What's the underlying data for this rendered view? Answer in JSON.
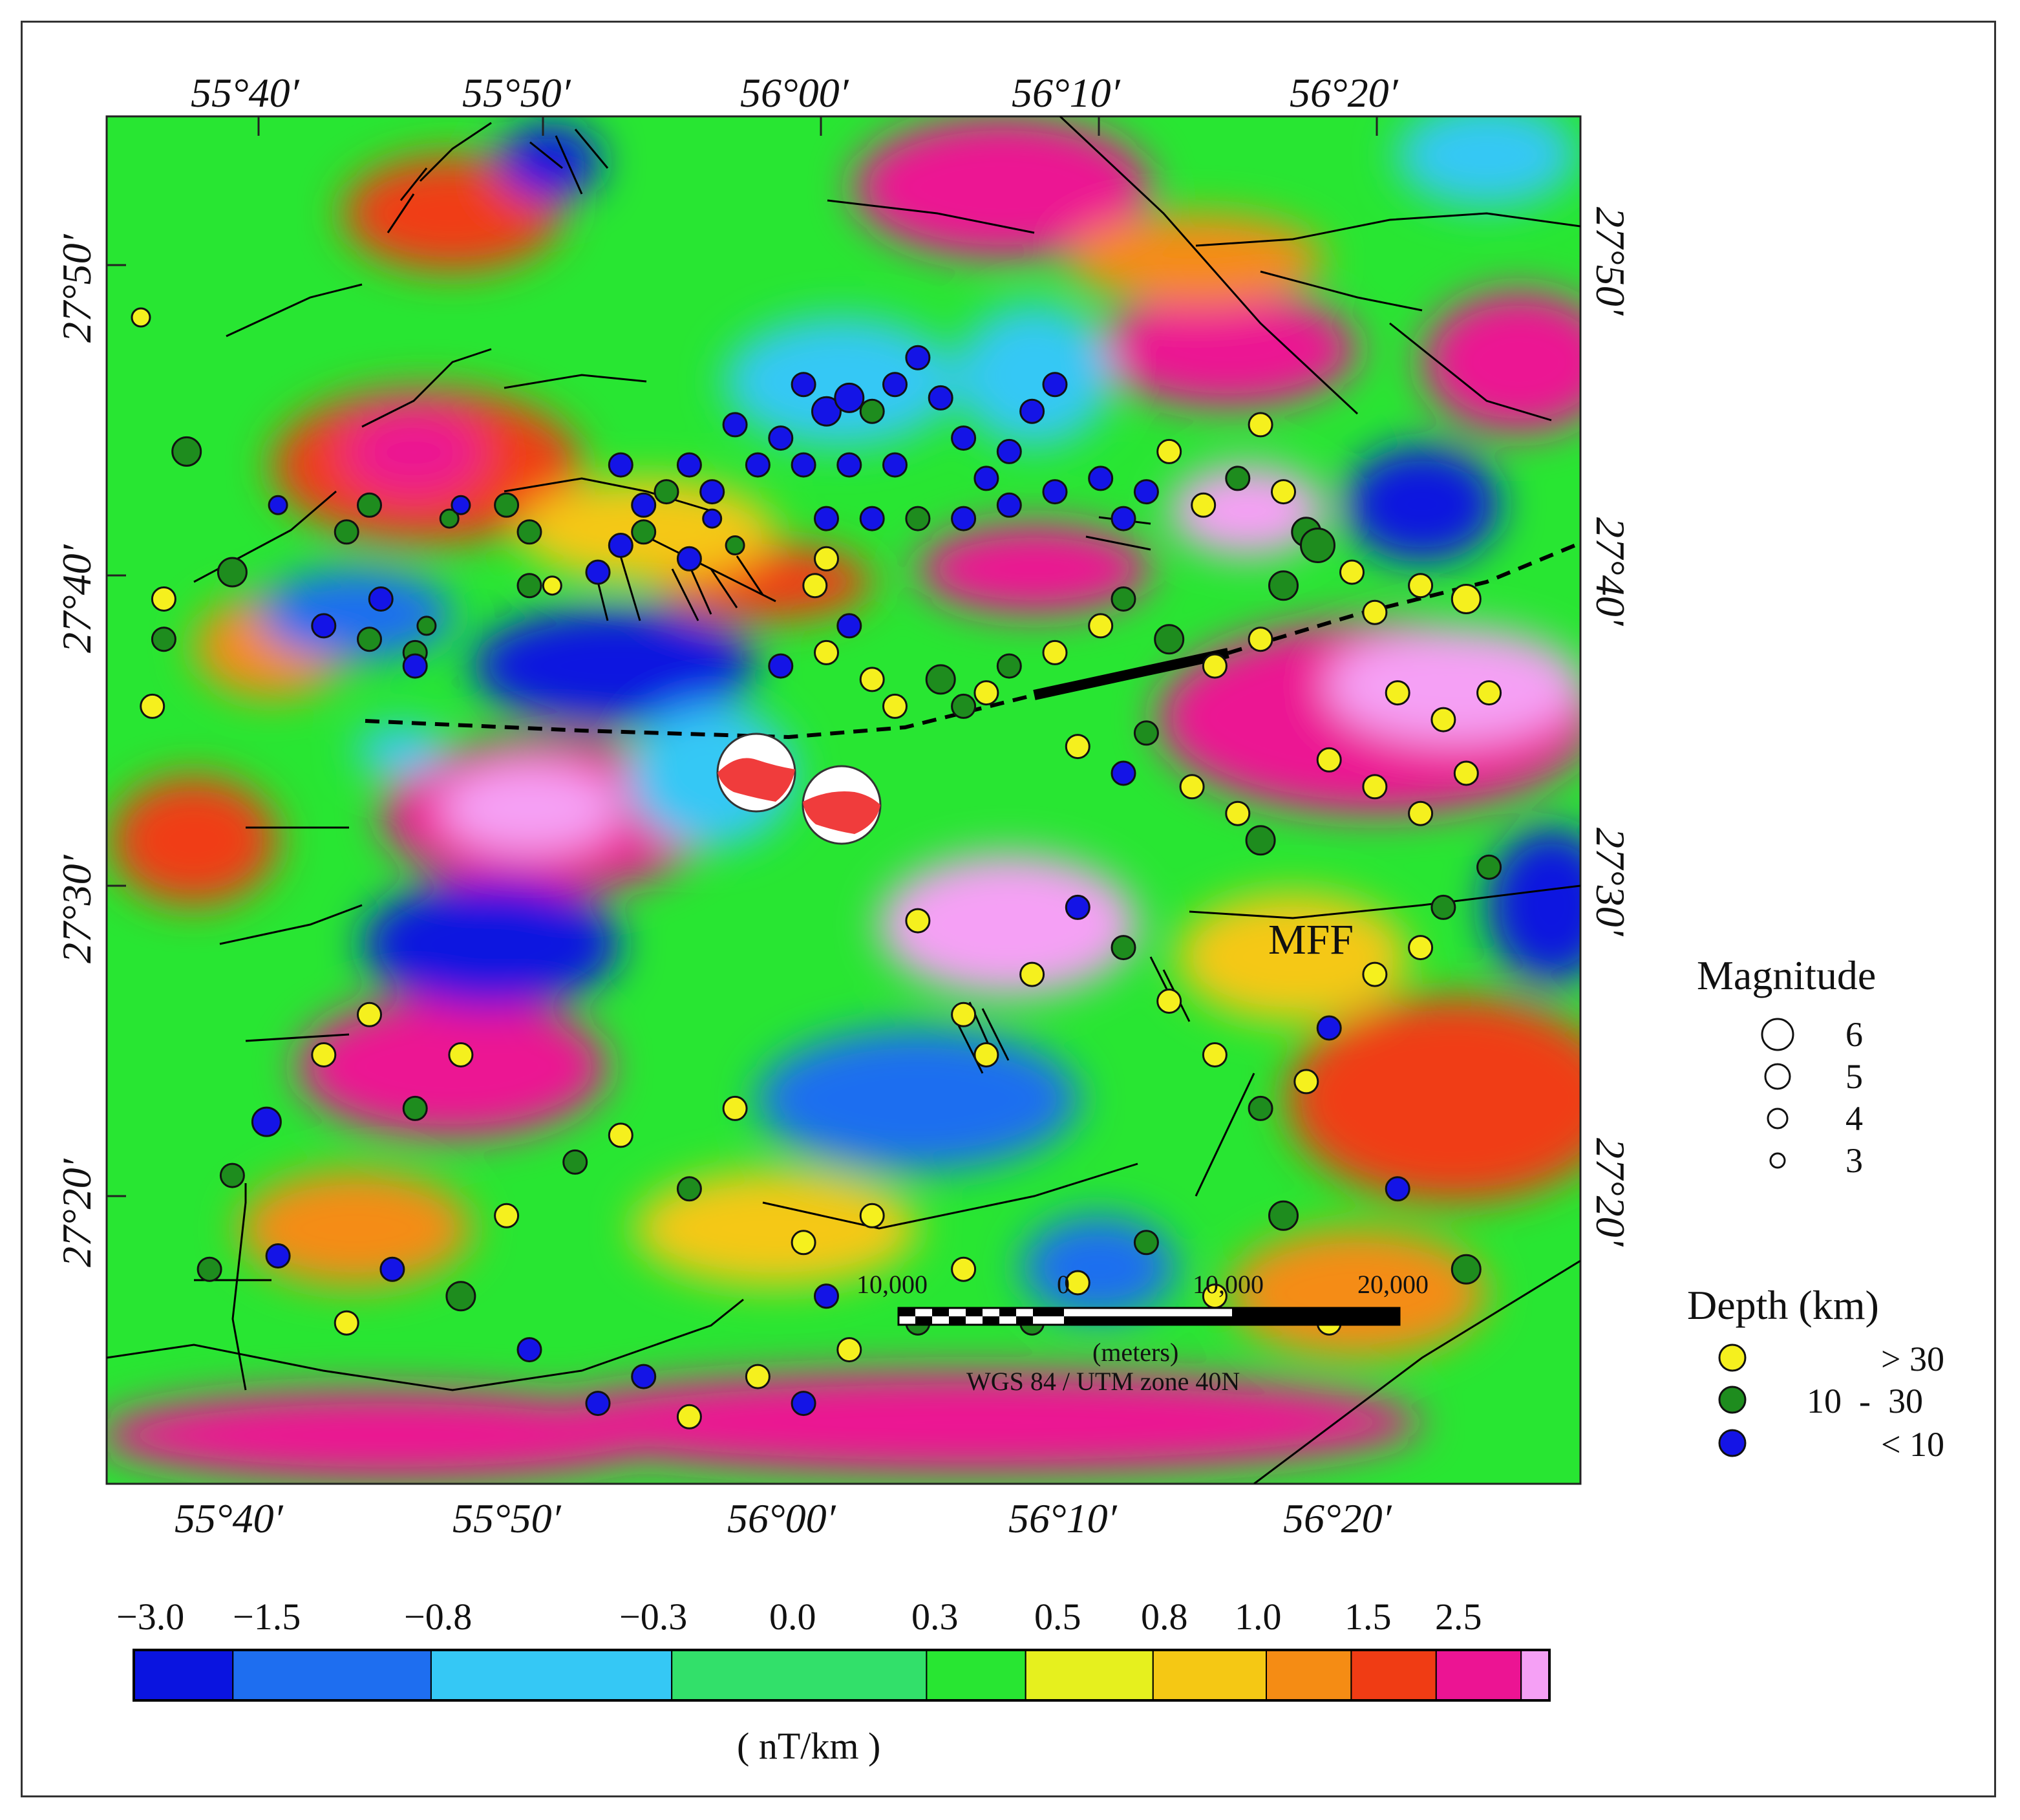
{
  "map": {
    "units_label": "( nT/km )",
    "fault_label": "MFF",
    "lon_ticks": [
      "55°40′",
      "55°50′",
      "56°00′",
      "56°10′",
      "56°20′"
    ],
    "lat_ticks": [
      "27°50′",
      "27°40′",
      "27°30′",
      "27°20′"
    ],
    "colorbar": {
      "labels": [
        "−3.0",
        "−1.5",
        "−0.8",
        "−0.3",
        "0.0",
        "0.3",
        "0.5",
        "0.8",
        "1.0",
        "1.5",
        "2.5"
      ],
      "colors": [
        "#0a14e0",
        "#1e6ef0",
        "#35c8f5",
        "#32e06a",
        "#28e632",
        "#e6f01e",
        "#f5c814",
        "#f58c14",
        "#f03c14",
        "#ec1493",
        "#f5a0f5"
      ]
    },
    "scale_bar": {
      "labels": [
        "10,000",
        "0",
        "10,000",
        "20,000"
      ],
      "unit": "(meters)",
      "projection": "WGS 84 / UTM zone 40N"
    },
    "legend": {
      "magnitude_title": "Magnitude",
      "magnitudes": [
        "6",
        "5",
        "4",
        "3"
      ],
      "depth_title": "Depth (km)",
      "depths": [
        {
          "label": "> 30",
          "color": "#f5f01e"
        },
        {
          "label": "10  -  30",
          "color": "#1e8c1e"
        },
        {
          "label": "< 10",
          "color": "#1414e6"
        }
      ]
    }
  },
  "events": [
    {
      "lon": 55.62,
      "lat": 27.77,
      "d": "deep",
      "m": 3.5
    },
    {
      "lon": 55.64,
      "lat": 27.53,
      "d": "mid",
      "m": 4
    },
    {
      "lon": 55.63,
      "lat": 27.48,
      "d": "deep",
      "m": 4
    },
    {
      "lon": 55.64,
      "lat": 27.56,
      "d": "deep",
      "m": 4
    },
    {
      "lon": 55.66,
      "lat": 27.67,
      "d": "mid",
      "m": 4.5
    },
    {
      "lon": 55.7,
      "lat": 27.58,
      "d": "mid",
      "m": 4.5
    },
    {
      "lon": 55.8,
      "lat": 27.61,
      "d": "mid",
      "m": 4
    },
    {
      "lon": 55.82,
      "lat": 27.63,
      "d": "mid",
      "m": 4
    },
    {
      "lon": 55.86,
      "lat": 27.52,
      "d": "mid",
      "m": 4
    },
    {
      "lon": 55.87,
      "lat": 27.54,
      "d": "mid",
      "m": 3.5
    },
    {
      "lon": 55.78,
      "lat": 27.54,
      "d": "shallow",
      "m": 4
    },
    {
      "lon": 55.83,
      "lat": 27.56,
      "d": "shallow",
      "m": 4
    },
    {
      "lon": 55.86,
      "lat": 27.51,
      "d": "shallow",
      "m": 4
    },
    {
      "lon": 55.82,
      "lat": 27.53,
      "d": "mid",
      "m": 4
    },
    {
      "lon": 55.94,
      "lat": 27.63,
      "d": "mid",
      "m": 4
    },
    {
      "lon": 55.96,
      "lat": 27.61,
      "d": "mid",
      "m": 4
    },
    {
      "lon": 55.98,
      "lat": 27.57,
      "d": "deep",
      "m": 3.5
    },
    {
      "lon": 56.04,
      "lat": 27.6,
      "d": "shallow",
      "m": 4
    },
    {
      "lon": 56.06,
      "lat": 27.63,
      "d": "shallow",
      "m": 4
    },
    {
      "lon": 56.04,
      "lat": 27.66,
      "d": "shallow",
      "m": 4
    },
    {
      "lon": 56.08,
      "lat": 27.64,
      "d": "mid",
      "m": 4
    },
    {
      "lon": 56.1,
      "lat": 27.66,
      "d": "shallow",
      "m": 4
    },
    {
      "lon": 56.12,
      "lat": 27.64,
      "d": "shallow",
      "m": 4
    },
    {
      "lon": 56.14,
      "lat": 27.69,
      "d": "shallow",
      "m": 4
    },
    {
      "lon": 56.16,
      "lat": 27.66,
      "d": "shallow",
      "m": 4
    },
    {
      "lon": 56.18,
      "lat": 27.68,
      "d": "shallow",
      "m": 4
    },
    {
      "lon": 56.2,
      "lat": 27.72,
      "d": "shallow",
      "m": 4
    },
    {
      "lon": 56.22,
      "lat": 27.7,
      "d": "shallow",
      "m": 4.5
    },
    {
      "lon": 56.24,
      "lat": 27.71,
      "d": "shallow",
      "m": 4.5
    },
    {
      "lon": 56.26,
      "lat": 27.7,
      "d": "mid",
      "m": 4
    },
    {
      "lon": 56.28,
      "lat": 27.72,
      "d": "shallow",
      "m": 4
    },
    {
      "lon": 56.3,
      "lat": 27.74,
      "d": "shallow",
      "m": 4
    },
    {
      "lon": 56.32,
      "lat": 27.71,
      "d": "shallow",
      "m": 4
    },
    {
      "lon": 56.34,
      "lat": 27.68,
      "d": "shallow",
      "m": 4
    },
    {
      "lon": 56.36,
      "lat": 27.65,
      "d": "shallow",
      "m": 4
    },
    {
      "lon": 56.38,
      "lat": 27.67,
      "d": "shallow",
      "m": 4
    },
    {
      "lon": 56.4,
      "lat": 27.7,
      "d": "shallow",
      "m": 4
    },
    {
      "lon": 56.42,
      "lat": 27.72,
      "d": "shallow",
      "m": 4
    },
    {
      "lon": 56.2,
      "lat": 27.66,
      "d": "shallow",
      "m": 4
    },
    {
      "lon": 56.24,
      "lat": 27.66,
      "d": "shallow",
      "m": 4
    },
    {
      "lon": 56.28,
      "lat": 27.66,
      "d": "shallow",
      "m": 4
    },
    {
      "lon": 56.22,
      "lat": 27.62,
      "d": "shallow",
      "m": 4
    },
    {
      "lon": 56.26,
      "lat": 27.62,
      "d": "shallow",
      "m": 4
    },
    {
      "lon": 56.3,
      "lat": 27.62,
      "d": "mid",
      "m": 4
    },
    {
      "lon": 56.34,
      "lat": 27.62,
      "d": "shallow",
      "m": 4
    },
    {
      "lon": 56.38,
      "lat": 27.63,
      "d": "shallow",
      "m": 4
    },
    {
      "lon": 56.42,
      "lat": 27.64,
      "d": "shallow",
      "m": 4
    },
    {
      "lon": 56.46,
      "lat": 27.65,
      "d": "shallow",
      "m": 4
    },
    {
      "lon": 56.48,
      "lat": 27.62,
      "d": "shallow",
      "m": 4
    },
    {
      "lon": 56.5,
      "lat": 27.64,
      "d": "shallow",
      "m": 4
    },
    {
      "lon": 56.52,
      "lat": 27.67,
      "d": "deep",
      "m": 4
    },
    {
      "lon": 56.55,
      "lat": 27.63,
      "d": "deep",
      "m": 4
    },
    {
      "lon": 56.6,
      "lat": 27.69,
      "d": "deep",
      "m": 4
    },
    {
      "lon": 56.62,
      "lat": 27.64,
      "d": "deep",
      "m": 4
    },
    {
      "lon": 56.64,
      "lat": 27.61,
      "d": "mid",
      "m": 4.5
    },
    {
      "lon": 56.58,
      "lat": 27.65,
      "d": "mid",
      "m": 4
    },
    {
      "lon": 56.12,
      "lat": 27.62,
      "d": "shallow",
      "m": 3.5
    },
    {
      "lon": 56.14,
      "lat": 27.6,
      "d": "mid",
      "m": 3.5
    },
    {
      "lon": 56.1,
      "lat": 27.59,
      "d": "shallow",
      "m": 4
    },
    {
      "lon": 56.06,
      "lat": 27.61,
      "d": "mid",
      "m": 4
    },
    {
      "lon": 55.96,
      "lat": 27.57,
      "d": "mid",
      "m": 4
    },
    {
      "lon": 56.02,
      "lat": 27.58,
      "d": "shallow",
      "m": 4
    },
    {
      "lon": 55.89,
      "lat": 27.62,
      "d": "mid",
      "m": 3.5
    },
    {
      "lon": 55.9,
      "lat": 27.63,
      "d": "shallow",
      "m": 3.5
    },
    {
      "lon": 55.74,
      "lat": 27.63,
      "d": "shallow",
      "m": 3.5
    },
    {
      "lon": 56.22,
      "lat": 27.59,
      "d": "deep",
      "m": 4
    },
    {
      "lon": 56.21,
      "lat": 27.57,
      "d": "deep",
      "m": 4
    },
    {
      "lon": 56.22,
      "lat": 27.52,
      "d": "deep",
      "m": 4
    },
    {
      "lon": 56.18,
      "lat": 27.51,
      "d": "shallow",
      "m": 4
    },
    {
      "lon": 56.24,
      "lat": 27.54,
      "d": "shallow",
      "m": 4
    },
    {
      "lon": 56.26,
      "lat": 27.5,
      "d": "deep",
      "m": 4
    },
    {
      "lon": 56.28,
      "lat": 27.48,
      "d": "deep",
      "m": 4
    },
    {
      "lon": 56.32,
      "lat": 27.5,
      "d": "mid",
      "m": 4.5
    },
    {
      "lon": 56.34,
      "lat": 27.48,
      "d": "mid",
      "m": 4
    },
    {
      "lon": 56.36,
      "lat": 27.49,
      "d": "deep",
      "m": 4
    },
    {
      "lon": 56.38,
      "lat": 27.51,
      "d": "mid",
      "m": 4
    },
    {
      "lon": 56.42,
      "lat": 27.52,
      "d": "deep",
      "m": 4
    },
    {
      "lon": 56.46,
      "lat": 27.54,
      "d": "deep",
      "m": 4
    },
    {
      "lon": 56.48,
      "lat": 27.56,
      "d": "mid",
      "m": 4
    },
    {
      "lon": 56.52,
      "lat": 27.53,
      "d": "mid",
      "m": 4.5
    },
    {
      "lon": 56.56,
      "lat": 27.51,
      "d": "deep",
      "m": 4
    },
    {
      "lon": 56.6,
      "lat": 27.53,
      "d": "deep",
      "m": 4
    },
    {
      "lon": 56.62,
      "lat": 27.57,
      "d": "mid",
      "m": 4.5
    },
    {
      "lon": 56.65,
      "lat": 27.6,
      "d": "mid",
      "m": 5
    },
    {
      "lon": 56.68,
      "lat": 27.58,
      "d": "deep",
      "m": 4
    },
    {
      "lon": 56.7,
      "lat": 27.55,
      "d": "deep",
      "m": 4
    },
    {
      "lon": 56.74,
      "lat": 27.57,
      "d": "deep",
      "m": 4
    },
    {
      "lon": 56.78,
      "lat": 27.56,
      "d": "deep",
      "m": 4.5
    },
    {
      "lon": 56.72,
      "lat": 27.49,
      "d": "deep",
      "m": 4
    },
    {
      "lon": 56.76,
      "lat": 27.47,
      "d": "deep",
      "m": 4
    },
    {
      "lon": 56.8,
      "lat": 27.49,
      "d": "deep",
      "m": 4
    },
    {
      "lon": 56.44,
      "lat": 27.45,
      "d": "deep",
      "m": 4
    },
    {
      "lon": 56.48,
      "lat": 27.43,
      "d": "shallow",
      "m": 4
    },
    {
      "lon": 56.5,
      "lat": 27.46,
      "d": "mid",
      "m": 4
    },
    {
      "lon": 56.54,
      "lat": 27.42,
      "d": "deep",
      "m": 4
    },
    {
      "lon": 56.58,
      "lat": 27.4,
      "d": "deep",
      "m": 4
    },
    {
      "lon": 56.6,
      "lat": 27.38,
      "d": "mid",
      "m": 4.5
    },
    {
      "lon": 56.66,
      "lat": 27.44,
      "d": "deep",
      "m": 4
    },
    {
      "lon": 56.7,
      "lat": 27.42,
      "d": "deep",
      "m": 4
    },
    {
      "lon": 56.74,
      "lat": 27.4,
      "d": "deep",
      "m": 4
    },
    {
      "lon": 56.78,
      "lat": 27.43,
      "d": "deep",
      "m": 4
    },
    {
      "lon": 56.3,
      "lat": 27.32,
      "d": "deep",
      "m": 4
    },
    {
      "lon": 56.34,
      "lat": 27.25,
      "d": "deep",
      "m": 4
    },
    {
      "lon": 56.36,
      "lat": 27.22,
      "d": "deep",
      "m": 4
    },
    {
      "lon": 56.4,
      "lat": 27.28,
      "d": "deep",
      "m": 4
    },
    {
      "lon": 56.44,
      "lat": 27.33,
      "d": "shallow",
      "m": 4
    },
    {
      "lon": 56.48,
      "lat": 27.3,
      "d": "mid",
      "m": 4
    },
    {
      "lon": 56.52,
      "lat": 27.26,
      "d": "deep",
      "m": 4
    },
    {
      "lon": 56.56,
      "lat": 27.22,
      "d": "deep",
      "m": 4
    },
    {
      "lon": 56.6,
      "lat": 27.18,
      "d": "mid",
      "m": 4
    },
    {
      "lon": 56.64,
      "lat": 27.2,
      "d": "deep",
      "m": 4
    },
    {
      "lon": 56.66,
      "lat": 27.24,
      "d": "shallow",
      "m": 4
    },
    {
      "lon": 56.7,
      "lat": 27.28,
      "d": "deep",
      "m": 4
    },
    {
      "lon": 56.74,
      "lat": 27.3,
      "d": "deep",
      "m": 4
    },
    {
      "lon": 56.76,
      "lat": 27.33,
      "d": "mid",
      "m": 4
    },
    {
      "lon": 56.8,
      "lat": 27.36,
      "d": "mid",
      "m": 4
    },
    {
      "lon": 55.7,
      "lat": 27.13,
      "d": "mid",
      "m": 4
    },
    {
      "lon": 55.73,
      "lat": 27.17,
      "d": "shallow",
      "m": 4.5
    },
    {
      "lon": 55.78,
      "lat": 27.22,
      "d": "deep",
      "m": 4
    },
    {
      "lon": 55.82,
      "lat": 27.25,
      "d": "deep",
      "m": 4
    },
    {
      "lon": 55.86,
      "lat": 27.18,
      "d": "mid",
      "m": 4
    },
    {
      "lon": 55.9,
      "lat": 27.22,
      "d": "deep",
      "m": 4
    },
    {
      "lon": 55.94,
      "lat": 27.1,
      "d": "deep",
      "m": 4
    },
    {
      "lon": 56.0,
      "lat": 27.14,
      "d": "mid",
      "m": 4
    },
    {
      "lon": 56.04,
      "lat": 27.16,
      "d": "deep",
      "m": 4
    },
    {
      "lon": 56.1,
      "lat": 27.12,
      "d": "mid",
      "m": 4
    },
    {
      "lon": 56.14,
      "lat": 27.18,
      "d": "deep",
      "m": 4
    },
    {
      "lon": 56.2,
      "lat": 27.08,
      "d": "deep",
      "m": 4
    },
    {
      "lon": 56.22,
      "lat": 27.04,
      "d": "shallow",
      "m": 4
    },
    {
      "lon": 56.26,
      "lat": 27.1,
      "d": "deep",
      "m": 4
    },
    {
      "lon": 55.68,
      "lat": 27.06,
      "d": "mid",
      "m": 4
    },
    {
      "lon": 55.74,
      "lat": 27.07,
      "d": "shallow",
      "m": 4
    },
    {
      "lon": 55.8,
      "lat": 27.02,
      "d": "deep",
      "m": 4
    },
    {
      "lon": 55.84,
      "lat": 27.06,
      "d": "shallow",
      "m": 4
    },
    {
      "lon": 55.9,
      "lat": 27.04,
      "d": "mid",
      "m": 4.5
    },
    {
      "lon": 55.96,
      "lat": 27.0,
      "d": "shallow",
      "m": 4
    },
    {
      "lon": 56.02,
      "lat": 26.96,
      "d": "shallow",
      "m": 4
    },
    {
      "lon": 56.06,
      "lat": 26.98,
      "d": "shallow",
      "m": 4
    },
    {
      "lon": 56.1,
      "lat": 26.95,
      "d": "deep",
      "m": 4
    },
    {
      "lon": 56.16,
      "lat": 26.98,
      "d": "deep",
      "m": 4
    },
    {
      "lon": 56.2,
      "lat": 26.96,
      "d": "shallow",
      "m": 4
    },
    {
      "lon": 56.24,
      "lat": 27.0,
      "d": "deep",
      "m": 4
    },
    {
      "lon": 56.3,
      "lat": 27.02,
      "d": "mid",
      "m": 4
    },
    {
      "lon": 56.34,
      "lat": 27.06,
      "d": "deep",
      "m": 4
    },
    {
      "lon": 56.4,
      "lat": 27.02,
      "d": "mid",
      "m": 4
    },
    {
      "lon": 56.44,
      "lat": 27.05,
      "d": "deep",
      "m": 4
    },
    {
      "lon": 56.5,
      "lat": 27.08,
      "d": "mid",
      "m": 4
    },
    {
      "lon": 56.56,
      "lat": 27.04,
      "d": "deep",
      "m": 4
    },
    {
      "lon": 56.62,
      "lat": 27.1,
      "d": "mid",
      "m": 4.5
    },
    {
      "lon": 56.66,
      "lat": 27.02,
      "d": "deep",
      "m": 4
    },
    {
      "lon": 56.72,
      "lat": 27.12,
      "d": "shallow",
      "m": 4
    },
    {
      "lon": 56.78,
      "lat": 27.06,
      "d": "mid",
      "m": 4.5
    }
  ]
}
